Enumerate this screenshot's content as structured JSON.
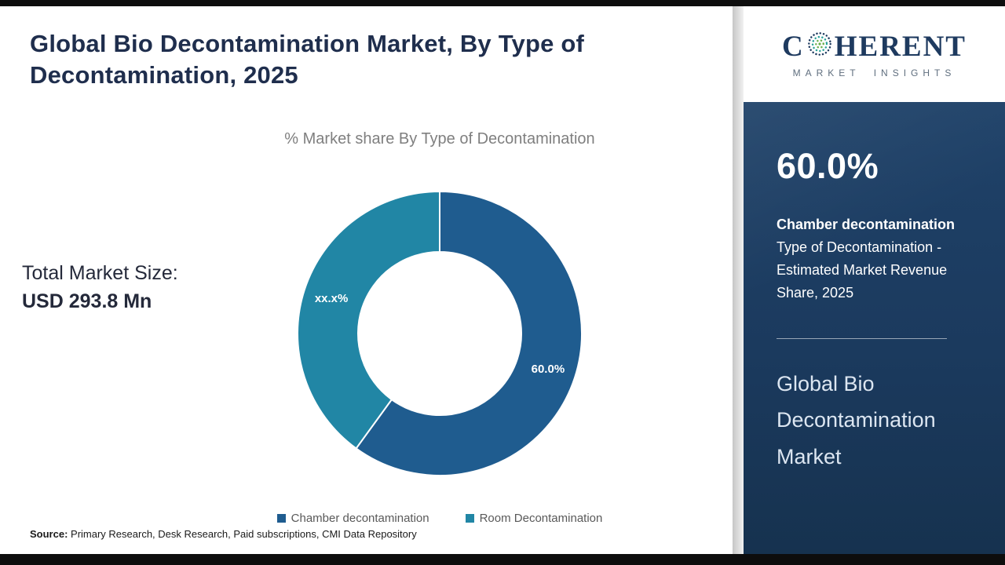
{
  "header": {
    "title": "Global Bio Decontamination Market, By Type of Decontamination, 2025"
  },
  "chart_data": {
    "type": "pie",
    "donut": true,
    "title": "% Market share By Type of Decontamination",
    "legend_position": "bottom",
    "segments": [
      {
        "label": "Chamber decontamination",
        "value": 60.0,
        "display": "60.0%",
        "color": "#1f5c8f"
      },
      {
        "label": "Room Decontamination",
        "value": 40.0,
        "display": "xx.x%",
        "color": "#2186a5"
      }
    ]
  },
  "stats": {
    "total_label": "Total Market Size:",
    "total_value": "USD 293.8 Mn"
  },
  "source": {
    "label": "Source:",
    "text": " Primary Research, Desk Research, Paid subscriptions, CMI Data Repository"
  },
  "sidebar": {
    "logo": {
      "text_pre_icon": "C",
      "text_post_icon": "HERENT",
      "tagline": "MARKET INSIGHTS"
    },
    "stat_value": "60.0%",
    "stat_desc_bold": "Chamber decontamination",
    "stat_desc_rest": " Type of Decontamination - Estimated Market Revenue Share, 2025",
    "market_name": "Global Bio Decontamination Market"
  }
}
